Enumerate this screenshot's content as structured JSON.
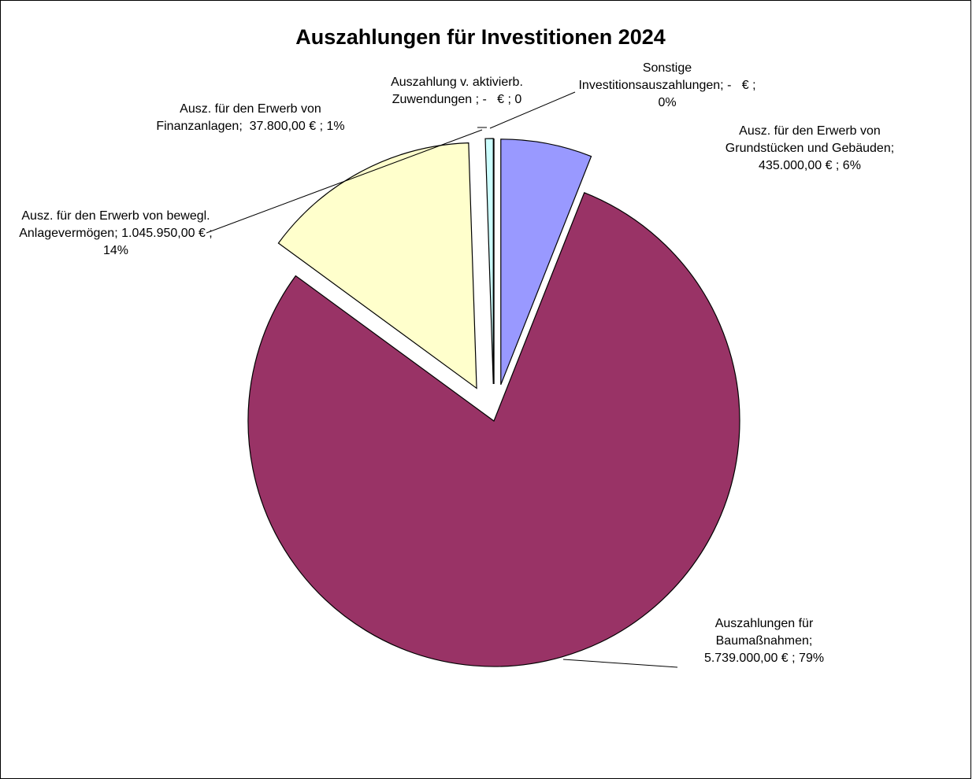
{
  "chart_data": {
    "type": "pie",
    "title": "Auszahlungen für Investitionen 2024",
    "categories": [
      "Ausz. für den Erwerb von Grundstücken und Gebäuden",
      "Auszahlungen für Baumaßnahmen",
      "Ausz. für den Erwerb von bewegl. Anlagevermögen",
      "Ausz. für den Erwerb von Finanzanlagen",
      "Auszahlung v. aktivierb. Zuwendungen",
      "Sonstige Investitionsauszahlungen"
    ],
    "values": [
      435000,
      5739000,
      1045950,
      37800,
      0,
      0
    ],
    "value_labels": [
      ";  435.000,00 € ; 6%",
      "; 5.739.000,00 € ; 79%",
      "; 1.045.950,00 € ; 14%",
      ";  37.800,00 € ; 1%",
      " ; -   € ; 0",
      "; -   € ; 0%"
    ],
    "colors": [
      "#9999ff",
      "#993366",
      "#ffffcc",
      "#ccffff",
      "#ffffff",
      "#ffffff"
    ]
  }
}
